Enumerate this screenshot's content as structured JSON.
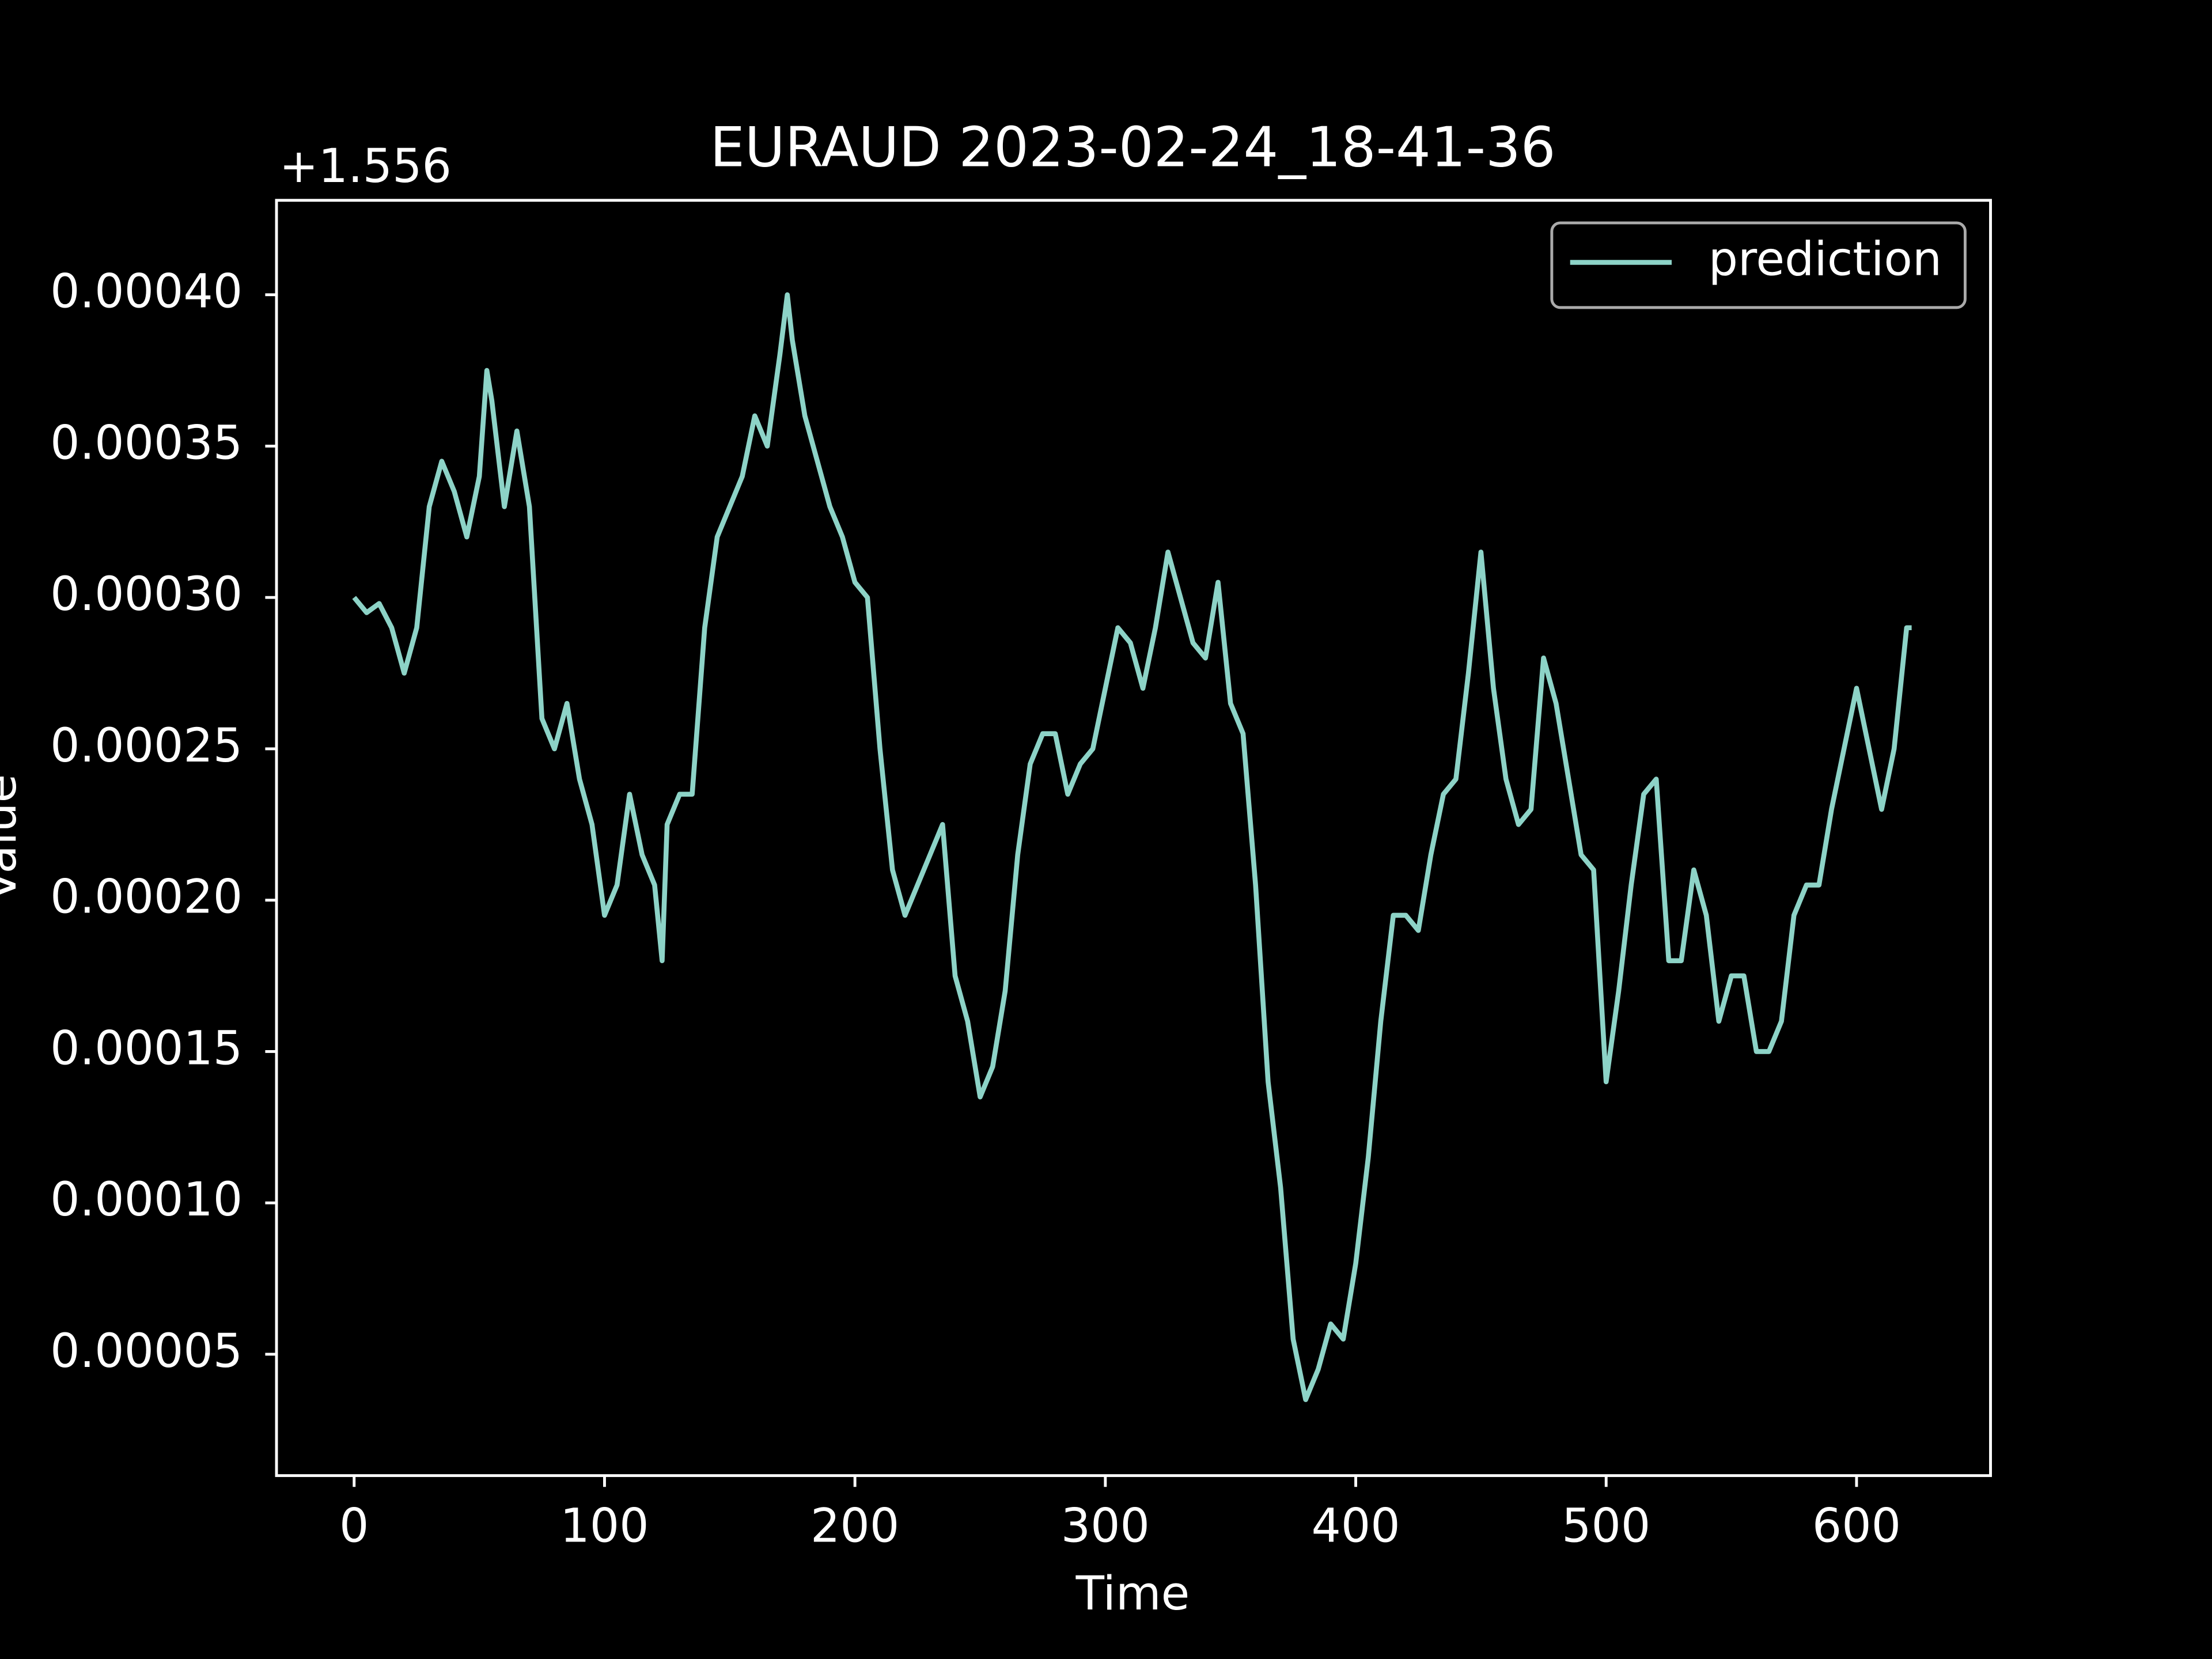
{
  "chart_data": {
    "type": "line",
    "title": "EURAUD 2023-02-24_18-41-36",
    "x_label": "Time",
    "y_label": "Value",
    "y_offset_label": "+1.556",
    "legend": "upper right",
    "x": [
      0,
      5,
      10,
      15,
      20,
      25,
      30,
      35,
      40,
      45,
      50,
      53,
      55,
      60,
      65,
      70,
      75,
      80,
      85,
      90,
      95,
      100,
      105,
      110,
      115,
      120,
      123,
      125,
      130,
      135,
      140,
      145,
      150,
      155,
      160,
      165,
      170,
      173,
      175,
      180,
      185,
      190,
      195,
      200,
      205,
      210,
      215,
      220,
      225,
      230,
      235,
      240,
      245,
      250,
      255,
      260,
      265,
      270,
      275,
      280,
      285,
      290,
      295,
      300,
      305,
      310,
      315,
      320,
      325,
      330,
      335,
      340,
      345,
      350,
      355,
      360,
      365,
      370,
      375,
      380,
      385,
      390,
      395,
      400,
      405,
      410,
      415,
      420,
      425,
      430,
      435,
      440,
      445,
      450,
      455,
      460,
      465,
      470,
      475,
      480,
      485,
      490,
      495,
      500,
      505,
      510,
      515,
      520,
      525,
      530,
      535,
      540,
      545,
      550,
      555,
      560,
      565,
      570,
      575,
      580,
      585,
      590,
      595,
      600,
      605,
      610,
      615,
      620,
      622
    ],
    "series": [
      {
        "name": "prediction",
        "color": "#8dd3c7",
        "values": [
          0.0003,
          0.000295,
          0.000298,
          0.00029,
          0.000275,
          0.00029,
          0.00033,
          0.000345,
          0.000335,
          0.00032,
          0.00034,
          0.000375,
          0.000365,
          0.00033,
          0.000355,
          0.00033,
          0.00026,
          0.00025,
          0.000265,
          0.00024,
          0.000225,
          0.000195,
          0.000205,
          0.000235,
          0.000215,
          0.000205,
          0.00018,
          0.000225,
          0.000235,
          0.000235,
          0.00029,
          0.00032,
          0.00033,
          0.00034,
          0.00036,
          0.00035,
          0.00038,
          0.0004,
          0.000385,
          0.00036,
          0.000345,
          0.00033,
          0.00032,
          0.000305,
          0.0003,
          0.00025,
          0.00021,
          0.000195,
          0.000205,
          0.000215,
          0.000225,
          0.000175,
          0.00016,
          0.000135,
          0.000145,
          0.00017,
          0.000215,
          0.000245,
          0.000255,
          0.000255,
          0.000235,
          0.000245,
          0.00025,
          0.00027,
          0.00029,
          0.000285,
          0.00027,
          0.00029,
          0.000315,
          0.0003,
          0.000285,
          0.00028,
          0.000305,
          0.000265,
          0.000255,
          0.000205,
          0.00014,
          0.000105,
          5.5e-05,
          3.5e-05,
          4.5e-05,
          6e-05,
          5.5e-05,
          8e-05,
          0.000115,
          0.00016,
          0.000195,
          0.000195,
          0.00019,
          0.000215,
          0.000235,
          0.00024,
          0.000275,
          0.000315,
          0.00027,
          0.00024,
          0.000225,
          0.00023,
          0.00028,
          0.000265,
          0.00024,
          0.000215,
          0.00021,
          0.00014,
          0.00017,
          0.000205,
          0.000235,
          0.00024,
          0.00018,
          0.00018,
          0.00021,
          0.000195,
          0.00016,
          0.000175,
          0.000175,
          0.00015,
          0.00015,
          0.00016,
          0.000195,
          0.000205,
          0.000205,
          0.00023,
          0.00025,
          0.00027,
          0.00025,
          0.00023,
          0.00025,
          0.00029,
          0.00029
        ]
      }
    ],
    "xlim": [
      -31,
      653.5
    ],
    "xticks": [
      0,
      100,
      200,
      300,
      400,
      500,
      600
    ],
    "ylim": [
      9.9e-06,
      0.0004312
    ],
    "yticks": [
      {
        "value": 5e-05,
        "label": "0.00005"
      },
      {
        "value": 0.0001,
        "label": "0.00010"
      },
      {
        "value": 0.00015,
        "label": "0.00015"
      },
      {
        "value": 0.0002,
        "label": "0.00020"
      },
      {
        "value": 0.00025,
        "label": "0.00025"
      },
      {
        "value": 0.0003,
        "label": "0.00030"
      },
      {
        "value": 0.00035,
        "label": "0.00035"
      },
      {
        "value": 0.0004,
        "label": "0.00040"
      }
    ]
  }
}
